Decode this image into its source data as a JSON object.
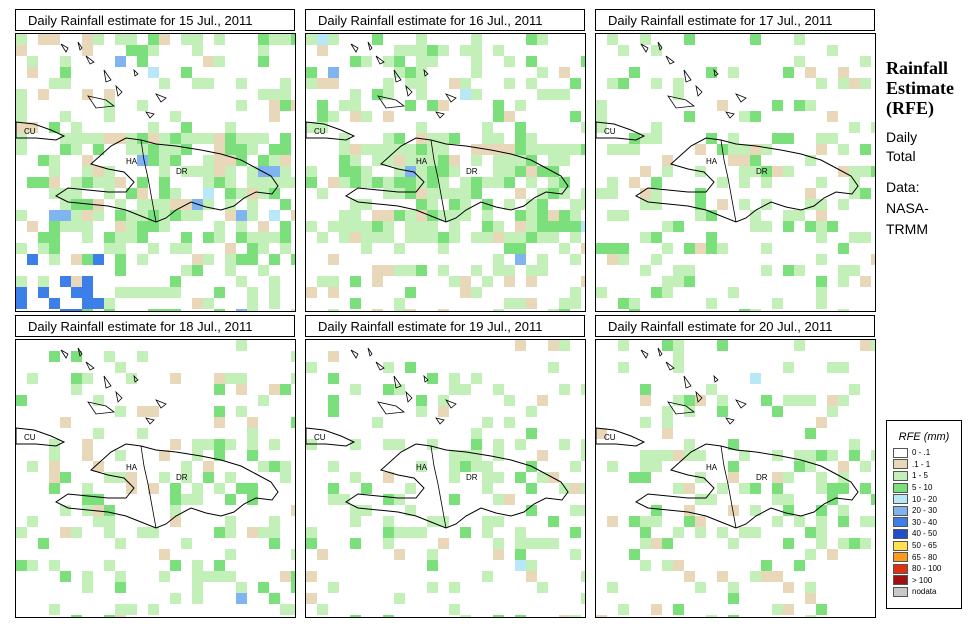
{
  "panels": [
    {
      "title": "Daily Rainfall estimate for  15 Jul., 2011",
      "seed": 15,
      "wet": 0.4,
      "heavy": 0.35
    },
    {
      "title": "Daily Rainfall estimate for  16 Jul., 2011",
      "seed": 16,
      "wet": 0.45,
      "heavy": 0.18
    },
    {
      "title": "Daily Rainfall estimate for  17 Jul., 2011",
      "seed": 17,
      "wet": 0.22,
      "heavy": 0.02
    },
    {
      "title": "Daily Rainfall estimate for  18 Jul., 2011",
      "seed": 18,
      "wet": 0.24,
      "heavy": 0.04
    },
    {
      "title": "Daily Rainfall estimate for  19 Jul., 2011",
      "seed": 19,
      "wet": 0.2,
      "heavy": 0.1
    },
    {
      "title": "Daily Rainfall estimate for  20 Jul., 2011",
      "seed": 20,
      "wet": 0.2,
      "heavy": 0.03
    }
  ],
  "map_labels": {
    "cuba": "CU",
    "haiti": "HA",
    "dominican_republic": "DR"
  },
  "sidebar": {
    "title_line1": "Rainfall",
    "title_line2": "Estimate",
    "title_line3": "(RFE)",
    "daily": "Daily",
    "total": "Total",
    "data_label": "Data:",
    "source1": "NASA-",
    "source2": "TRMM"
  },
  "legend": {
    "title": "RFE (mm)",
    "items": [
      {
        "label": "0 - .1",
        "color": "#ffffff"
      },
      {
        "label": ".1 - 1",
        "color": "#e8d7b8"
      },
      {
        "label": "1 - 5",
        "color": "#c2f0b8"
      },
      {
        "label": "5 - 10",
        "color": "#7be07b"
      },
      {
        "label": "10 - 20",
        "color": "#b8e8f8"
      },
      {
        "label": "20 - 30",
        "color": "#7fb4f0"
      },
      {
        "label": "30 - 40",
        "color": "#3d7fe8"
      },
      {
        "label": "40 - 50",
        "color": "#1f4fc8"
      },
      {
        "label": "50 - 65",
        "color": "#ffe050"
      },
      {
        "label": "65 - 80",
        "color": "#ff9a1a"
      },
      {
        "label": "80 - 100",
        "color": "#e03010"
      },
      {
        "label": "> 100",
        "color": "#a01010"
      },
      {
        "label": "nodata",
        "color": "#c8c8c8"
      }
    ]
  }
}
